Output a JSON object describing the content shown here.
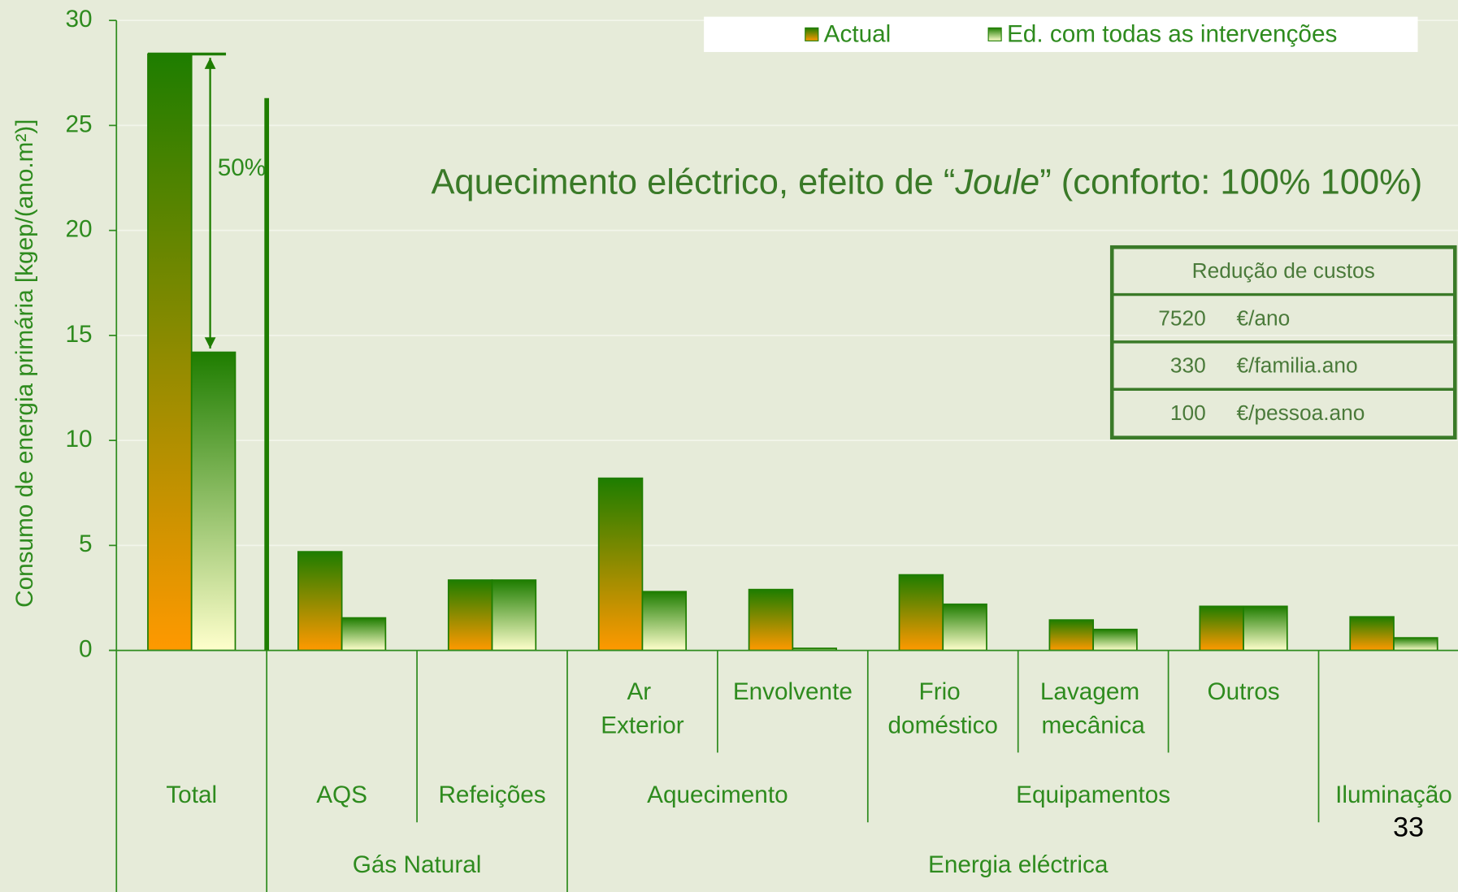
{
  "chart_data": {
    "type": "bar",
    "title": [
      "Aquecimento eléctrico, efeito de “",
      "Joule",
      "” (conforto: 100% 100%)"
    ],
    "y_label": "Consumo de energia primária [kgep/(ano.m²)]",
    "categories": [
      "Total",
      "AQS",
      "Refeições",
      "Ar Exterior",
      "Envolvente",
      "Frio doméstico",
      "Lavagem mecânica",
      "Outros",
      "Iluminação"
    ],
    "category_groups": [
      {
        "label": "Aquecimento",
        "from": 3,
        "to": 4
      },
      {
        "label": "Equipamentos",
        "from": 5,
        "to": 7
      }
    ],
    "category_top_groups": [
      {
        "label": "Gás Natural",
        "from": 1,
        "to": 2
      },
      {
        "label": "Energia eléctrica",
        "from": 3,
        "to": 8
      }
    ],
    "series": [
      {
        "name": "Actual",
        "color": [
          "#1e7d00",
          "#ff9900"
        ],
        "values": [
          28.4,
          4.7,
          3.35,
          8.2,
          2.9,
          3.6,
          1.45,
          2.1,
          1.6
        ]
      },
      {
        "name": "Ed. com todas as intervenções",
        "color": [
          "#1e7d00",
          "#ffffcc"
        ],
        "values": [
          14.2,
          1.55,
          3.35,
          2.8,
          0.1,
          2.2,
          1.0,
          2.1,
          0.6
        ]
      }
    ],
    "ylim": [
      0,
      30
    ],
    "yticks": [
      0,
      5,
      10,
      15,
      20,
      25,
      30
    ],
    "grid": true,
    "legend": "top-right",
    "annotation": "50%",
    "cost_table": {
      "header": "Redução de custos",
      "rows": [
        [
          7520,
          "€/ano"
        ],
        [
          330,
          "€/familia.ano"
        ],
        [
          100,
          "€/pessoa.ano"
        ]
      ]
    },
    "page_number": "33"
  }
}
